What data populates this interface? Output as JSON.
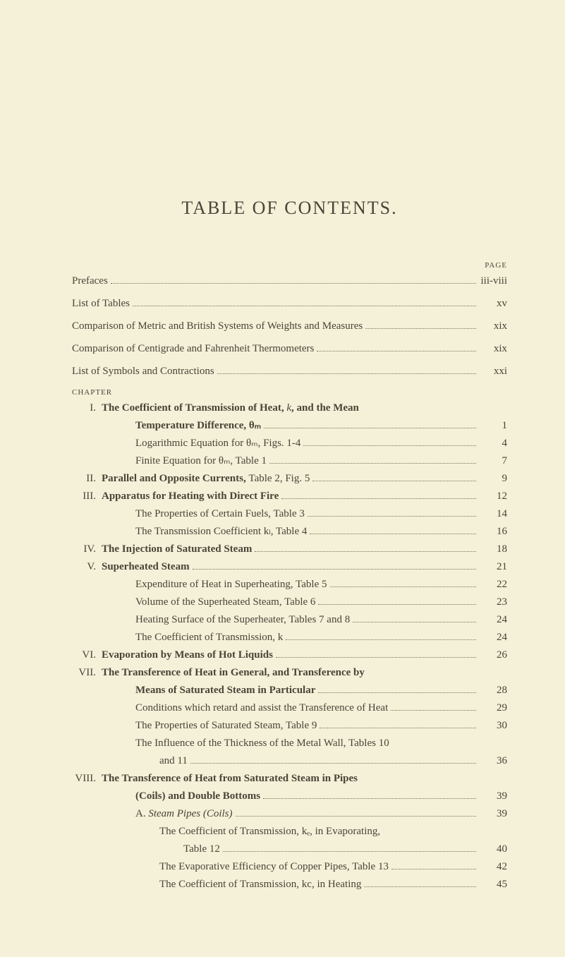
{
  "title": "TABLE OF CONTENTS.",
  "pageHeader": "PAGE",
  "chapterLabel": "CHAPTER",
  "frontMatter": [
    {
      "label": "Prefaces",
      "page": "iii-viii"
    },
    {
      "label": "List of Tables",
      "page": "xv"
    },
    {
      "label": "Comparison of Metric and British Systems of Weights and Measures",
      "page": "xix"
    },
    {
      "label": "Comparison of Centigrade and Fahrenheit Thermometers",
      "page": "xix"
    },
    {
      "label": "List of Symbols and Contractions",
      "page": "xxi"
    }
  ],
  "chapters": [
    {
      "roman": "I.",
      "titleParts": [
        {
          "text": "The Coefficient of Transmission of Heat, ",
          "bold": true
        },
        {
          "text": "k",
          "italic": true
        },
        {
          "text": ", and the Mean",
          "bold": true
        }
      ],
      "continuation": {
        "text": "Temperature Difference, θₘ",
        "bold": true,
        "page": "1"
      },
      "subs": [
        {
          "label": "Logarithmic Equation for θₘ, Figs. 1-4",
          "page": "4",
          "indent": 1
        },
        {
          "label": "Finite Equation for θₘ, Table 1",
          "page": "7",
          "indent": 1
        }
      ]
    },
    {
      "roman": "II.",
      "titleParts": [
        {
          "text": "Parallel and Opposite Currents, ",
          "bold": true
        },
        {
          "text": "Table 2, Fig. 5"
        }
      ],
      "page": "9"
    },
    {
      "roman": "III.",
      "titleParts": [
        {
          "text": "Apparatus for Heating with Direct Fire",
          "bold": true
        }
      ],
      "page": "12",
      "subs": [
        {
          "label": "The Properties of Certain Fuels, Table 3",
          "page": "14",
          "indent": 1
        },
        {
          "label": "The Transmission Coefficient kₗ, Table 4",
          "page": "16",
          "indent": 1
        }
      ]
    },
    {
      "roman": "IV.",
      "titleParts": [
        {
          "text": "The Injection of Saturated Steam",
          "bold": true
        }
      ],
      "page": "18"
    },
    {
      "roman": "V.",
      "titleParts": [
        {
          "text": "Superheated Steam",
          "bold": true
        }
      ],
      "page": "21",
      "subs": [
        {
          "label": "Expenditure of Heat in Superheating, Table 5",
          "page": "22",
          "indent": 1
        },
        {
          "label": "Volume of the Superheated Steam, Table 6",
          "page": "23",
          "indent": 1
        },
        {
          "label": "Heating Surface of the Superheater, Tables 7 and 8",
          "page": "24",
          "indent": 1
        },
        {
          "label": "The Coefficient of Transmission, k",
          "page": "24",
          "indent": 1
        }
      ]
    },
    {
      "roman": "VI.",
      "titleParts": [
        {
          "text": "Evaporation by Means of Hot Liquids",
          "bold": true
        }
      ],
      "page": "26"
    },
    {
      "roman": "VII.",
      "titleParts": [
        {
          "text": "The Transference of Heat in General, and Transference by",
          "bold": true
        }
      ],
      "continuation": {
        "text": "Means of Saturated Steam in Particular",
        "bold": true,
        "page": "28"
      },
      "subs": [
        {
          "label": "Conditions which retard and assist the Transference of Heat",
          "page": "29",
          "indent": 1
        },
        {
          "label": "The Properties of Saturated Steam, Table 9",
          "page": "30",
          "indent": 1
        },
        {
          "label": "The Influence of the Thickness of the Metal Wall, Tables 10",
          "indent": 1,
          "noPage": true
        },
        {
          "label": "and 11",
          "page": "36",
          "indent": 2
        }
      ]
    },
    {
      "roman": "VIII.",
      "titleParts": [
        {
          "text": "The Transference of Heat from Saturated Steam in Pipes",
          "bold": true
        }
      ],
      "continuation": {
        "text": "(Coils) and Double Bottoms",
        "bold": true,
        "page": "39"
      },
      "subs": [
        {
          "label": "A. Steam Pipes (Coils)",
          "page": "39",
          "indent": 1,
          "italicPart": "Steam Pipes (Coils)",
          "prefix": "A. "
        },
        {
          "label": "The Coefficient of Transmission, kₑ, in Evaporating,",
          "indent": 2,
          "noPage": true
        },
        {
          "label": "Table 12",
          "page": "40",
          "indent": 3
        },
        {
          "label": "The Evaporative Efficiency of Copper Pipes, Table 13",
          "page": "42",
          "indent": 2
        },
        {
          "label": "The Coefficient of Transmission, kc, in Heating",
          "page": "45",
          "indent": 2
        }
      ]
    }
  ]
}
